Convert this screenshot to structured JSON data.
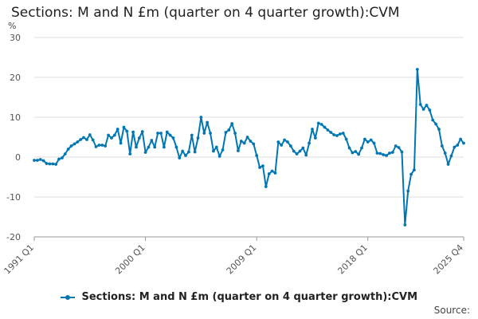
{
  "header": {
    "title": "Sections: M and N £m (quarter on 4 quarter growth):CVM"
  },
  "footer": {
    "source": "Source:"
  },
  "chart_data": {
    "type": "line",
    "title": "Sections: M and N £m (quarter on 4 quarter growth):CVM",
    "ylabel": "%",
    "ylim": [
      -20,
      30
    ],
    "yticks": [
      30,
      20,
      10,
      0,
      -10,
      -20
    ],
    "xtick_labels": [
      "1991 Q1",
      "2000 Q1",
      "2009 Q1",
      "2018 Q1",
      "2025 Q4"
    ],
    "grid": "horizontal",
    "legend": "bottom",
    "color": "#0077b3",
    "series": [
      {
        "name": "Sections: M and N £m (quarter on 4 quarter growth):CVM",
        "start": "1991 Q1",
        "end": "2025 Q4",
        "values": [
          -0.8,
          -0.8,
          -0.6,
          -0.9,
          -1.6,
          -1.7,
          -1.7,
          -1.8,
          -0.5,
          -0.2,
          0.8,
          2.0,
          2.8,
          3.3,
          3.8,
          4.4,
          4.9,
          4.4,
          5.6,
          4.3,
          2.6,
          3.0,
          3.0,
          2.8,
          5.5,
          4.8,
          5.5,
          7.0,
          3.5,
          7.5,
          6.5,
          0.8,
          6.3,
          2.5,
          4.8,
          6.4,
          1.2,
          2.5,
          4.2,
          2.5,
          6.0,
          6.0,
          2.5,
          6.3,
          5.5,
          4.8,
          2.5,
          -0.2,
          1.5,
          0.4,
          1.3,
          5.5,
          1.3,
          4.8,
          10.0,
          6.0,
          8.7,
          6.0,
          1.5,
          2.5,
          0.2,
          1.8,
          6.2,
          6.8,
          8.4,
          6.0,
          1.6,
          4.0,
          3.5,
          5.0,
          4.0,
          3.3,
          0.4,
          -2.6,
          -2.2,
          -7.4,
          -4.2,
          -3.5,
          -4.0,
          3.8,
          3.0,
          4.3,
          3.8,
          2.8,
          1.5,
          0.8,
          1.5,
          2.3,
          0.5,
          3.5,
          7.0,
          4.8,
          8.5,
          8.2,
          7.5,
          6.8,
          6.2,
          5.6,
          5.4,
          5.8,
          6.0,
          4.5,
          2.3,
          1.1,
          1.4,
          0.7,
          2.3,
          4.5,
          3.8,
          4.3,
          3.5,
          1.0,
          0.9,
          0.6,
          0.4,
          1.0,
          1.2,
          2.8,
          2.4,
          1.3,
          -17.0,
          -8.5,
          -4.3,
          -3.2,
          22.0,
          13.2,
          12.0,
          13.0,
          11.8,
          9.3,
          8.3,
          7.0,
          2.8,
          1.0,
          -1.8,
          0.3,
          2.5,
          3.0,
          4.5,
          3.5
        ]
      }
    ]
  }
}
